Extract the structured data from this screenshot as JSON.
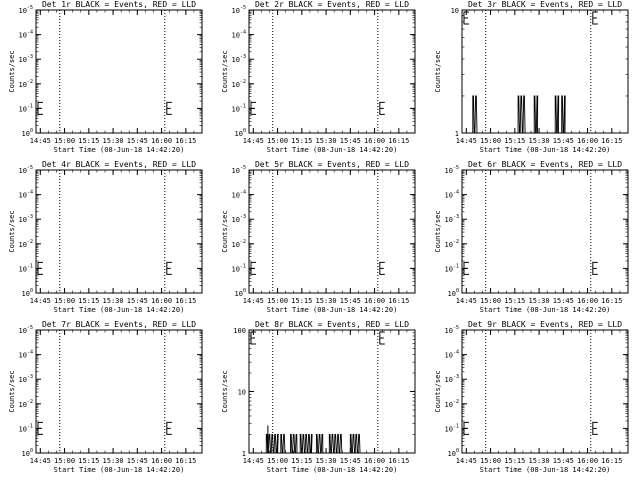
{
  "chart_data": [
    {
      "type": "line",
      "title": "Det 1r BLACK = Events, RED = LLD",
      "xlabel": "Start Time (08-Jun-18 14:42:20)",
      "ylabel": "Counts/sec",
      "x_ticks": [
        "14:45",
        "15:00",
        "15:15",
        "15:30",
        "15:45",
        "16:00",
        "16:15"
      ],
      "y_scale": "log",
      "y_ticks": [
        {
          "base": "10",
          "exp": "0"
        },
        {
          "base": "10",
          "exp": "-1"
        },
        {
          "base": "10",
          "exp": "-2"
        },
        {
          "base": "10",
          "exp": "-3"
        },
        {
          "base": "10",
          "exp": "-4"
        },
        {
          "base": "10",
          "exp": "-5"
        }
      ],
      "dashed_lines_at": [
        "14:57",
        "16:02"
      ],
      "series": []
    },
    {
      "type": "line",
      "title": "Det 2r BLACK = Events, RED = LLD",
      "xlabel": "Start Time (08-Jun-18 14:42:20)",
      "ylabel": "Counts/sec",
      "x_ticks": [
        "14:45",
        "15:00",
        "15:15",
        "15:30",
        "15:45",
        "16:00",
        "16:15"
      ],
      "y_scale": "log",
      "y_ticks": [
        {
          "base": "10",
          "exp": "0"
        },
        {
          "base": "10",
          "exp": "-1"
        },
        {
          "base": "10",
          "exp": "-2"
        },
        {
          "base": "10",
          "exp": "-3"
        },
        {
          "base": "10",
          "exp": "-4"
        },
        {
          "base": "10",
          "exp": "-5"
        }
      ],
      "dashed_lines_at": [
        "14:57",
        "16:02"
      ],
      "series": []
    },
    {
      "type": "line",
      "title": "Det 3r BLACK = Events, RED = LLD",
      "xlabel": "Start Time (08-Jun-18 14:42:20)",
      "ylabel": "Counts/sec",
      "x_ticks": [
        "14:45",
        "15:00",
        "15:15",
        "15:30",
        "15:45",
        "16:00",
        "16:15"
      ],
      "y_scale": "log",
      "y_ticks": [
        {
          "base": "1",
          "exp": ""
        },
        {
          "base": "10",
          "exp": ""
        }
      ],
      "dashed_lines_at": [
        "14:57",
        "16:02"
      ],
      "bursts": [
        [
          "14:49",
          "14:52"
        ],
        [
          "15:17",
          "15:22"
        ],
        [
          "15:27",
          "15:29"
        ],
        [
          "15:40",
          "15:42"
        ],
        [
          "15:44",
          "15:46"
        ]
      ],
      "burst_value": 2,
      "series": []
    },
    {
      "type": "line",
      "title": "Det 4r BLACK = Events, RED = LLD",
      "xlabel": "Start Time (08-Jun-18 14:42:20)",
      "ylabel": "Counts/sec",
      "x_ticks": [
        "14:45",
        "15:00",
        "15:15",
        "15:30",
        "15:45",
        "16:00",
        "16:15"
      ],
      "y_scale": "log",
      "y_ticks": [
        {
          "base": "10",
          "exp": "0"
        },
        {
          "base": "10",
          "exp": "-1"
        },
        {
          "base": "10",
          "exp": "-2"
        },
        {
          "base": "10",
          "exp": "-3"
        },
        {
          "base": "10",
          "exp": "-4"
        },
        {
          "base": "10",
          "exp": "-5"
        }
      ],
      "dashed_lines_at": [
        "14:57",
        "16:02"
      ],
      "series": []
    },
    {
      "type": "line",
      "title": "Det 5r BLACK = Events, RED = LLD",
      "xlabel": "Start Time (08-Jun-18 14:42:20)",
      "ylabel": "Counts/sec",
      "x_ticks": [
        "14:45",
        "15:00",
        "15:15",
        "15:30",
        "15:45",
        "16:00",
        "16:15"
      ],
      "y_scale": "log",
      "y_ticks": [
        {
          "base": "10",
          "exp": "0"
        },
        {
          "base": "10",
          "exp": "-1"
        },
        {
          "base": "10",
          "exp": "-2"
        },
        {
          "base": "10",
          "exp": "-3"
        },
        {
          "base": "10",
          "exp": "-4"
        },
        {
          "base": "10",
          "exp": "-5"
        }
      ],
      "dashed_lines_at": [
        "14:57",
        "16:02"
      ],
      "series": []
    },
    {
      "type": "line",
      "title": "Det 6r BLACK = Events, RED = LLD",
      "xlabel": "Start Time (08-Jun-18 14:42:20)",
      "ylabel": "Counts/sec",
      "x_ticks": [
        "14:45",
        "15:00",
        "15:15",
        "15:30",
        "15:45",
        "16:00",
        "16:15"
      ],
      "y_scale": "log",
      "y_ticks": [
        {
          "base": "10",
          "exp": "0"
        },
        {
          "base": "10",
          "exp": "-1"
        },
        {
          "base": "10",
          "exp": "-2"
        },
        {
          "base": "10",
          "exp": "-3"
        },
        {
          "base": "10",
          "exp": "-4"
        },
        {
          "base": "10",
          "exp": "-5"
        }
      ],
      "dashed_lines_at": [
        "14:57",
        "16:02"
      ],
      "series": []
    },
    {
      "type": "line",
      "title": "Det 7r BLACK = Events, RED = LLD",
      "xlabel": "Start Time (08-Jun-18 14:42:20)",
      "ylabel": "Counts/sec",
      "x_ticks": [
        "14:45",
        "15:00",
        "15:15",
        "15:30",
        "15:45",
        "16:00",
        "16:15"
      ],
      "y_scale": "log",
      "y_ticks": [
        {
          "base": "10",
          "exp": "0"
        },
        {
          "base": "10",
          "exp": "-1"
        },
        {
          "base": "10",
          "exp": "-2"
        },
        {
          "base": "10",
          "exp": "-3"
        },
        {
          "base": "10",
          "exp": "-4"
        },
        {
          "base": "10",
          "exp": "-5"
        }
      ],
      "dashed_lines_at": [
        "14:57",
        "16:02"
      ],
      "series": []
    },
    {
      "type": "line",
      "title": "Det 8r BLACK = Events, RED = LLD",
      "xlabel": "Start Time (08-Jun-18 14:42:20)",
      "ylabel": "Counts/sec",
      "x_ticks": [
        "14:45",
        "15:00",
        "15:15",
        "15:30",
        "15:45",
        "16:00",
        "16:15"
      ],
      "y_scale": "log",
      "y_ticks": [
        {
          "base": "1",
          "exp": ""
        },
        {
          "base": "10",
          "exp": ""
        },
        {
          "base": "100",
          "exp": ""
        }
      ],
      "dashed_lines_at": [
        "14:57",
        "16:02"
      ],
      "bursts": [
        [
          "14:53",
          "15:00"
        ],
        [
          "15:02",
          "15:05"
        ],
        [
          "15:08",
          "15:12"
        ],
        [
          "15:14",
          "15:21"
        ],
        [
          "15:24",
          "15:28"
        ],
        [
          "15:32",
          "15:40"
        ],
        [
          "15:45",
          "15:51"
        ]
      ],
      "burst_value": 2,
      "spike": {
        "x": "14:54",
        "value": 2.8
      },
      "series": []
    },
    {
      "type": "line",
      "title": "Det 9r BLACK = Events, RED = LLD",
      "xlabel": "Start Time (08-Jun-18 14:42:20)",
      "ylabel": "Counts/sec",
      "x_ticks": [
        "14:45",
        "15:00",
        "15:15",
        "15:30",
        "15:45",
        "16:00",
        "16:15"
      ],
      "y_scale": "log",
      "y_ticks": [
        {
          "base": "10",
          "exp": "0"
        },
        {
          "base": "10",
          "exp": "-1"
        },
        {
          "base": "10",
          "exp": "-2"
        },
        {
          "base": "10",
          "exp": "-3"
        },
        {
          "base": "10",
          "exp": "-4"
        },
        {
          "base": "10",
          "exp": "-5"
        }
      ],
      "dashed_lines_at": [
        "14:57",
        "16:02"
      ],
      "series": []
    }
  ]
}
